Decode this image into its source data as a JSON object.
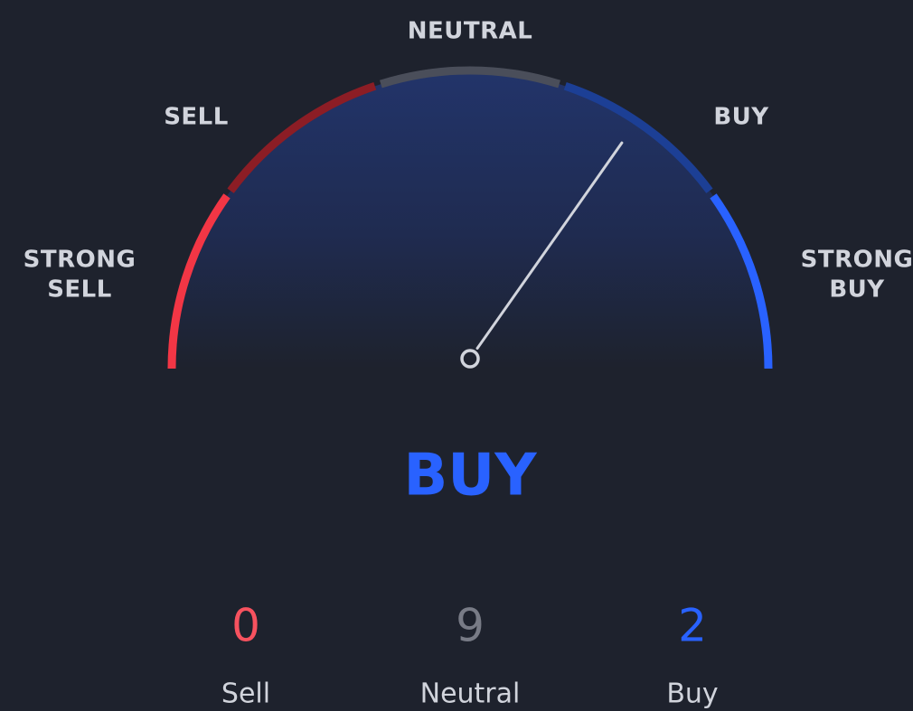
{
  "gauge": {
    "labels": [
      [
        "STRONG",
        "SELL"
      ],
      [
        "SELL"
      ],
      [
        "NEUTRAL"
      ],
      [
        "BUY"
      ],
      [
        "STRONG",
        "BUY"
      ]
    ],
    "colors": [
      "#f23645",
      "#8c1d25",
      "#4a4e5a",
      "#1c3f95",
      "#2962ff"
    ],
    "range": [
      -1,
      1
    ],
    "needle": 0.39
  },
  "result": {
    "text": "BUY",
    "color": "#2962ff"
  },
  "counts": [
    {
      "value": 0,
      "label": "Sell",
      "color": "#f7525f"
    },
    {
      "value": 9,
      "label": "Neutral",
      "color": "#787b86"
    },
    {
      "value": 2,
      "label": "Buy",
      "color": "#2962ff"
    }
  ]
}
